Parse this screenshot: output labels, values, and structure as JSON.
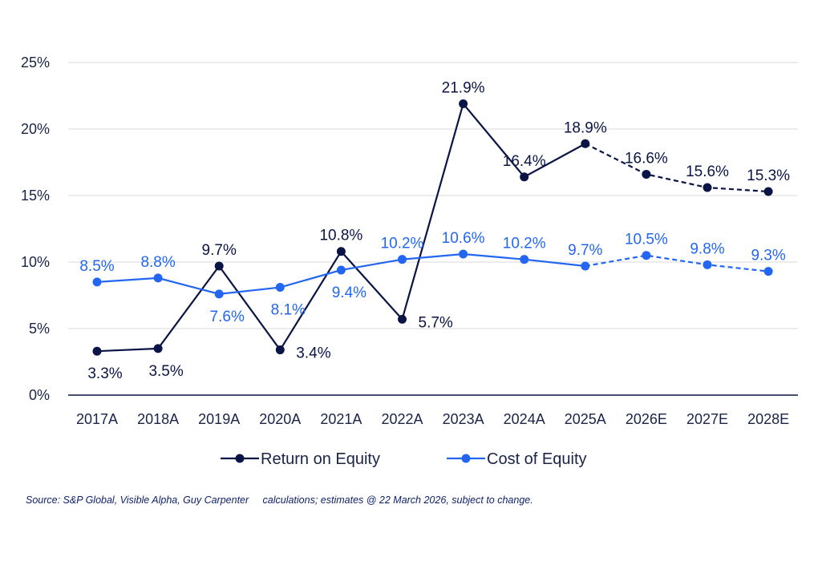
{
  "colors": {
    "roe": "#0b1545",
    "coe": "#2266f2",
    "grid": "#d9d9d9",
    "axis": "#0b1545",
    "text": "#1a2348"
  },
  "chart_data": {
    "type": "line",
    "categories": [
      "2017A",
      "2018A",
      "2019A",
      "2020A",
      "2021A",
      "2022A",
      "2023A",
      "2024A",
      "2025A",
      "2026E",
      "2027E",
      "2028E"
    ],
    "ylim": [
      0,
      25
    ],
    "y_ticks": [
      0,
      5,
      10,
      15,
      20,
      25
    ],
    "y_tick_labels": [
      "0%",
      "5%",
      "10%",
      "15%",
      "20%",
      "25%"
    ],
    "grid": "horizontal",
    "legend_position": "bottom",
    "estimate_start_index": 8,
    "series": [
      {
        "key": "roe",
        "name": "Return on Equity",
        "values": [
          3.3,
          3.5,
          9.7,
          3.4,
          10.8,
          5.7,
          21.9,
          16.4,
          18.9,
          16.6,
          15.6,
          15.3
        ],
        "labels": [
          "3.3%",
          "3.5%",
          "9.7%",
          "3.4%",
          "10.8%",
          "5.7%",
          "21.9%",
          "16.4%",
          "18.9%",
          "16.6%",
          "15.6%",
          "15.3%"
        ],
        "label_positions": [
          "below",
          "below",
          "above",
          "right",
          "above",
          "right",
          "above",
          "above",
          "above",
          "above",
          "above",
          "above"
        ]
      },
      {
        "key": "coe",
        "name": "Cost of Equity",
        "values": [
          8.5,
          8.8,
          7.6,
          8.1,
          9.4,
          10.2,
          10.6,
          10.2,
          9.7,
          10.5,
          9.8,
          9.3
        ],
        "labels": [
          "8.5%",
          "8.8%",
          "7.6%",
          "8.1%",
          "9.4%",
          "10.2%",
          "10.6%",
          "10.2%",
          "9.7%",
          "10.5%",
          "9.8%",
          "9.3%"
        ],
        "label_positions": [
          "above",
          "above",
          "below",
          "below",
          "below",
          "above",
          "above",
          "above",
          "above",
          "above",
          "above",
          "above"
        ]
      }
    ]
  },
  "source_note": "Source: S&P Global, Visible Alpha, Guy Carpenter     calculations; estimates @ 22 March 2026, subject to change."
}
